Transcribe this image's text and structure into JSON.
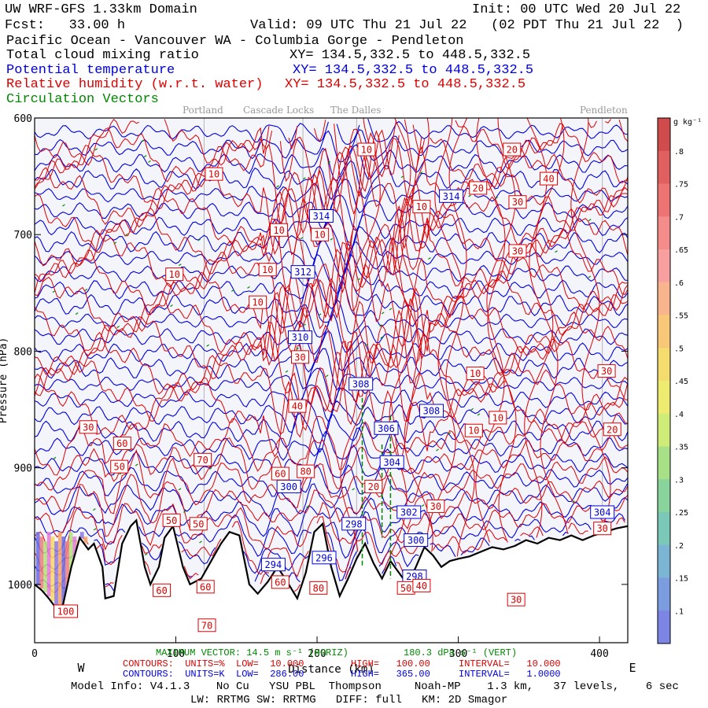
{
  "header": {
    "title": "UW WRF-GFS 1.33km Domain",
    "init": "Init: 00 UTC Wed 20 Jul 22",
    "fcst": "Fcst:   33.00 h",
    "valid": "Valid: 09 UTC Thu 21 Jul 22   (02 PDT Thu 21 Jul 22  )",
    "region": "Pacific Ocean - Vancouver WA - Columbia Gorge - Pendleton",
    "var_cloud": "Total cloud mixing ratio",
    "var_theta": "Potential temperature",
    "var_rh": "Relative humidity (w.r.t. water)",
    "var_vec": "Circulation Vectors",
    "xy_black": "XY= 134.5,332.5 to 448.5,332.5",
    "xy_blue": "XY= 134.5,332.5 to 448.5,332.5",
    "xy_red": "XY= 134.5,332.5 to 448.5,332.5"
  },
  "locations": [
    "Portland",
    "Cascade Locks",
    "The Dalles",
    "Pendleton"
  ],
  "colors": {
    "theta": "#0000dd",
    "rh": "#dd0000",
    "vectors": "#008800",
    "terrain": "#000000",
    "plot_bg": "#f4f4fb"
  },
  "chart_data": {
    "type": "cross-section",
    "title": "UW WRF-GFS 1.33km Domain",
    "xlabel": "Distance (km)",
    "ylabel": "Pressure (hPa)",
    "xlim": [
      0,
      420
    ],
    "ylim": [
      1050,
      600
    ],
    "x_ticks": [
      0,
      100,
      200,
      300,
      400
    ],
    "y_ticks": [
      600,
      700,
      800,
      900,
      1000
    ],
    "y_tick_labels": [
      "600",
      "700",
      "800",
      "900",
      "1000"
    ],
    "x_tick_labels": [
      "0",
      "100",
      "200",
      "300",
      "400"
    ],
    "west_label": "W",
    "east_label": "E",
    "location_x_km": [
      120,
      190,
      228,
      402
    ],
    "terrain_profile": [
      [
        0,
        1000
      ],
      [
        5,
        1005
      ],
      [
        10,
        1012
      ],
      [
        15,
        1020
      ],
      [
        20,
        1018
      ],
      [
        26,
        985
      ],
      [
        32,
        960
      ],
      [
        38,
        970
      ],
      [
        42,
        965
      ],
      [
        48,
        985
      ],
      [
        50,
        1012
      ],
      [
        56,
        1010
      ],
      [
        62,
        965
      ],
      [
        68,
        950
      ],
      [
        72,
        945
      ],
      [
        78,
        985
      ],
      [
        82,
        1000
      ],
      [
        88,
        985
      ],
      [
        92,
        960
      ],
      [
        98,
        950
      ],
      [
        105,
        985
      ],
      [
        110,
        1000
      ],
      [
        118,
        995
      ],
      [
        125,
        980
      ],
      [
        132,
        965
      ],
      [
        138,
        955
      ],
      [
        145,
        958
      ],
      [
        152,
        1000
      ],
      [
        158,
        1008
      ],
      [
        165,
        998
      ],
      [
        172,
        985
      ],
      [
        180,
        1000
      ],
      [
        186,
        1012
      ],
      [
        192,
        990
      ],
      [
        198,
        955
      ],
      [
        204,
        948
      ],
      [
        210,
        985
      ],
      [
        216,
        1010
      ],
      [
        222,
        995
      ],
      [
        228,
        978
      ],
      [
        234,
        965
      ],
      [
        240,
        982
      ],
      [
        246,
        995
      ],
      [
        252,
        980
      ],
      [
        258,
        990
      ],
      [
        264,
        1000
      ],
      [
        270,
        985
      ],
      [
        276,
        968
      ],
      [
        282,
        975
      ],
      [
        288,
        985
      ],
      [
        294,
        980
      ],
      [
        300,
        978
      ],
      [
        308,
        976
      ],
      [
        316,
        972
      ],
      [
        324,
        968
      ],
      [
        332,
        970
      ],
      [
        340,
        967
      ],
      [
        348,
        962
      ],
      [
        356,
        965
      ],
      [
        364,
        960
      ],
      [
        372,
        962
      ],
      [
        380,
        958
      ],
      [
        388,
        962
      ],
      [
        396,
        958
      ],
      [
        404,
        955
      ],
      [
        412,
        952
      ],
      [
        420,
        950
      ]
    ],
    "theta_contours_K": {
      "low": 286,
      "high": 365,
      "interval": 1
    },
    "rh_contours_pct": {
      "low": 10,
      "high": 100,
      "interval": 10
    },
    "theta_labels": [
      {
        "v": "314",
        "x": 203,
        "p": 684
      },
      {
        "v": "314",
        "x": 295,
        "p": 667
      },
      {
        "v": "312",
        "x": 190,
        "p": 732
      },
      {
        "v": "310",
        "x": 188,
        "p": 788
      },
      {
        "v": "308",
        "x": 231,
        "p": 828
      },
      {
        "v": "308",
        "x": 281,
        "p": 851
      },
      {
        "v": "306",
        "x": 249,
        "p": 866
      },
      {
        "v": "304",
        "x": 253,
        "p": 895
      },
      {
        "v": "302",
        "x": 265,
        "p": 938
      },
      {
        "v": "300",
        "x": 270,
        "p": 962
      },
      {
        "v": "300",
        "x": 180,
        "p": 916
      },
      {
        "v": "298",
        "x": 226,
        "p": 948
      },
      {
        "v": "296",
        "x": 205,
        "p": 977
      },
      {
        "v": "294",
        "x": 169,
        "p": 983
      },
      {
        "v": "298",
        "x": 269,
        "p": 993
      },
      {
        "v": "304",
        "x": 402,
        "p": 938
      }
    ],
    "rh_labels": [
      {
        "v": "10",
        "x": 127,
        "p": 648
      },
      {
        "v": "10",
        "x": 235,
        "p": 627
      },
      {
        "v": "20",
        "x": 338,
        "p": 627
      },
      {
        "v": "40",
        "x": 364,
        "p": 652
      },
      {
        "v": "20",
        "x": 314,
        "p": 660
      },
      {
        "v": "30",
        "x": 342,
        "p": 672
      },
      {
        "v": "10",
        "x": 274,
        "p": 676
      },
      {
        "v": "10",
        "x": 173,
        "p": 696
      },
      {
        "v": "10",
        "x": 202,
        "p": 700
      },
      {
        "v": "30",
        "x": 342,
        "p": 714
      },
      {
        "v": "10",
        "x": 99,
        "p": 734
      },
      {
        "v": "10",
        "x": 165,
        "p": 730
      },
      {
        "v": "10",
        "x": 158,
        "p": 758
      },
      {
        "v": "30",
        "x": 188,
        "p": 805
      },
      {
        "v": "10",
        "x": 312,
        "p": 819
      },
      {
        "v": "30",
        "x": 405,
        "p": 817
      },
      {
        "v": "40",
        "x": 186,
        "p": 847
      },
      {
        "v": "10",
        "x": 328,
        "p": 857
      },
      {
        "v": "20",
        "x": 409,
        "p": 867
      },
      {
        "v": "10",
        "x": 311,
        "p": 868
      },
      {
        "v": "30",
        "x": 38,
        "p": 865
      },
      {
        "v": "60",
        "x": 62,
        "p": 879
      },
      {
        "v": "70",
        "x": 119,
        "p": 893
      },
      {
        "v": "50",
        "x": 60,
        "p": 899
      },
      {
        "v": "60",
        "x": 174,
        "p": 905
      },
      {
        "v": "80",
        "x": 192,
        "p": 903
      },
      {
        "v": "20",
        "x": 240,
        "p": 916
      },
      {
        "v": "30",
        "x": 284,
        "p": 933
      },
      {
        "v": "50",
        "x": 97,
        "p": 945
      },
      {
        "v": "50",
        "x": 116,
        "p": 948
      },
      {
        "v": "60",
        "x": 90,
        "p": 1005
      },
      {
        "v": "60",
        "x": 121,
        "p": 1002
      },
      {
        "v": "60",
        "x": 174,
        "p": 998
      },
      {
        "v": "80",
        "x": 201,
        "p": 1003
      },
      {
        "v": "50",
        "x": 263,
        "p": 1003
      },
      {
        "v": "40",
        "x": 274,
        "p": 1001
      },
      {
        "v": "30",
        "x": 341,
        "p": 1013
      },
      {
        "v": "30",
        "x": 402,
        "p": 952
      },
      {
        "v": "70",
        "x": 122,
        "p": 1035
      },
      {
        "v": "100",
        "x": 22,
        "p": 1023
      }
    ],
    "cloud_colorbar": {
      "units": "g kg⁻¹",
      "levels": [
        ".8",
        ".75",
        ".7",
        ".65",
        ".6",
        ".55",
        ".5",
        ".45",
        ".4",
        ".35",
        ".3",
        ".25",
        ".2",
        ".15",
        ".1"
      ]
    },
    "footer": {
      "max_vector": "MAXIMUM VECTOR: 14.5 m s⁻¹ (HORIZ)",
      "max_vert": "180.3 dPa s⁻¹ (VERT)",
      "rh_units": "CONTOURS:  UNITS=%  LOW=  10.000",
      "rh_high": "HIGH=   100.00",
      "rh_interval": "INTERVAL=   10.000",
      "theta_units": "CONTOURS:  UNITS=K  LOW=  286.00",
      "theta_high": "HIGH=   365.00",
      "theta_interval": "INTERVAL=   1.0000",
      "model_info": "Model Info: V4.1.3    No Cu   YSU PBL  Thompson     Noah-MP    1.3 km,   37 levels,    6 sec",
      "model_info2": "LW: RRTMG SW: RRTMG   DIFF: full   KM: 2D Smagor"
    }
  }
}
